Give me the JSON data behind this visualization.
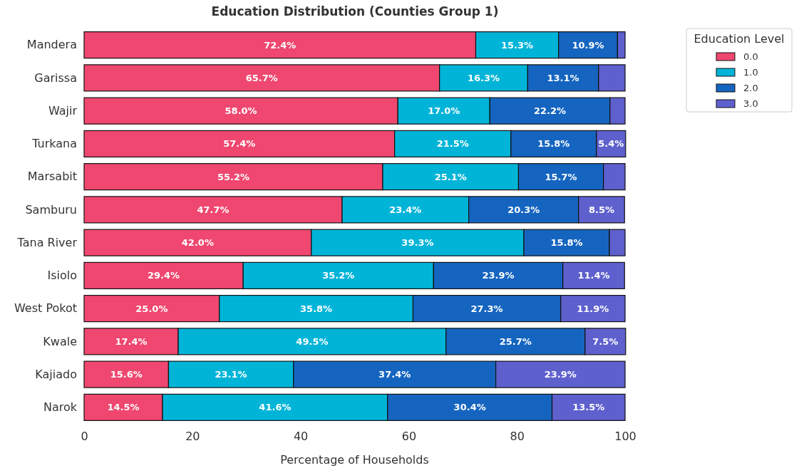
{
  "chart_data": {
    "type": "bar",
    "title": "Education Distribution (Counties Group 1)",
    "xlabel": "Percentage of Households",
    "legend_title": "Education Level",
    "orientation": "horizontal",
    "stacked": true,
    "legend": "top right",
    "xlim": [
      0,
      100
    ],
    "xticks": [
      0,
      20,
      40,
      60,
      80,
      100
    ],
    "categories": [
      "Mandera",
      "Garissa",
      "Wajir",
      "Turkana",
      "Marsabit",
      "Samburu",
      "Tana River",
      "Isiolo",
      "West Pokot",
      "Kwale",
      "Kajiado",
      "Narok"
    ],
    "series": [
      {
        "name": "0.0",
        "color": "#ef476f",
        "values": [
          72.4,
          65.7,
          58.0,
          57.4,
          55.2,
          47.7,
          42.0,
          29.4,
          25.0,
          17.4,
          15.6,
          14.5
        ],
        "value_labels": [
          "72.4%",
          "65.7%",
          "58.0%",
          "57.4%",
          "55.2%",
          "47.7%",
          "42.0%",
          "29.4%",
          "25.0%",
          "17.4%",
          "15.6%",
          "14.5%"
        ]
      },
      {
        "name": "1.0",
        "color": "#00b4d8",
        "values": [
          15.3,
          16.3,
          17.0,
          21.5,
          25.1,
          23.4,
          39.3,
          35.2,
          35.8,
          49.5,
          23.1,
          41.6
        ],
        "value_labels": [
          "15.3%",
          "16.3%",
          "17.0%",
          "21.5%",
          "25.1%",
          "23.4%",
          "39.3%",
          "35.2%",
          "35.8%",
          "49.5%",
          "23.1%",
          "41.6%"
        ]
      },
      {
        "name": "2.0",
        "color": "#1565c0",
        "values": [
          10.9,
          13.1,
          22.2,
          15.8,
          15.7,
          20.3,
          15.8,
          23.9,
          27.3,
          25.7,
          37.4,
          30.4
        ],
        "value_labels": [
          "10.9%",
          "13.1%",
          "22.2%",
          "15.8%",
          "15.7%",
          "20.3%",
          "15.8%",
          "23.9%",
          "27.3%",
          "25.7%",
          "37.4%",
          "30.4%"
        ]
      },
      {
        "name": "3.0",
        "color": "#5e60ce",
        "values": [
          1.4,
          4.9,
          2.8,
          5.4,
          4.0,
          8.5,
          2.9,
          11.4,
          11.9,
          7.5,
          23.9,
          13.5
        ],
        "value_labels": [
          null,
          null,
          null,
          "5.4%",
          null,
          "8.5%",
          null,
          "11.4%",
          "11.9%",
          "7.5%",
          "23.9%",
          "13.5%"
        ]
      }
    ]
  }
}
